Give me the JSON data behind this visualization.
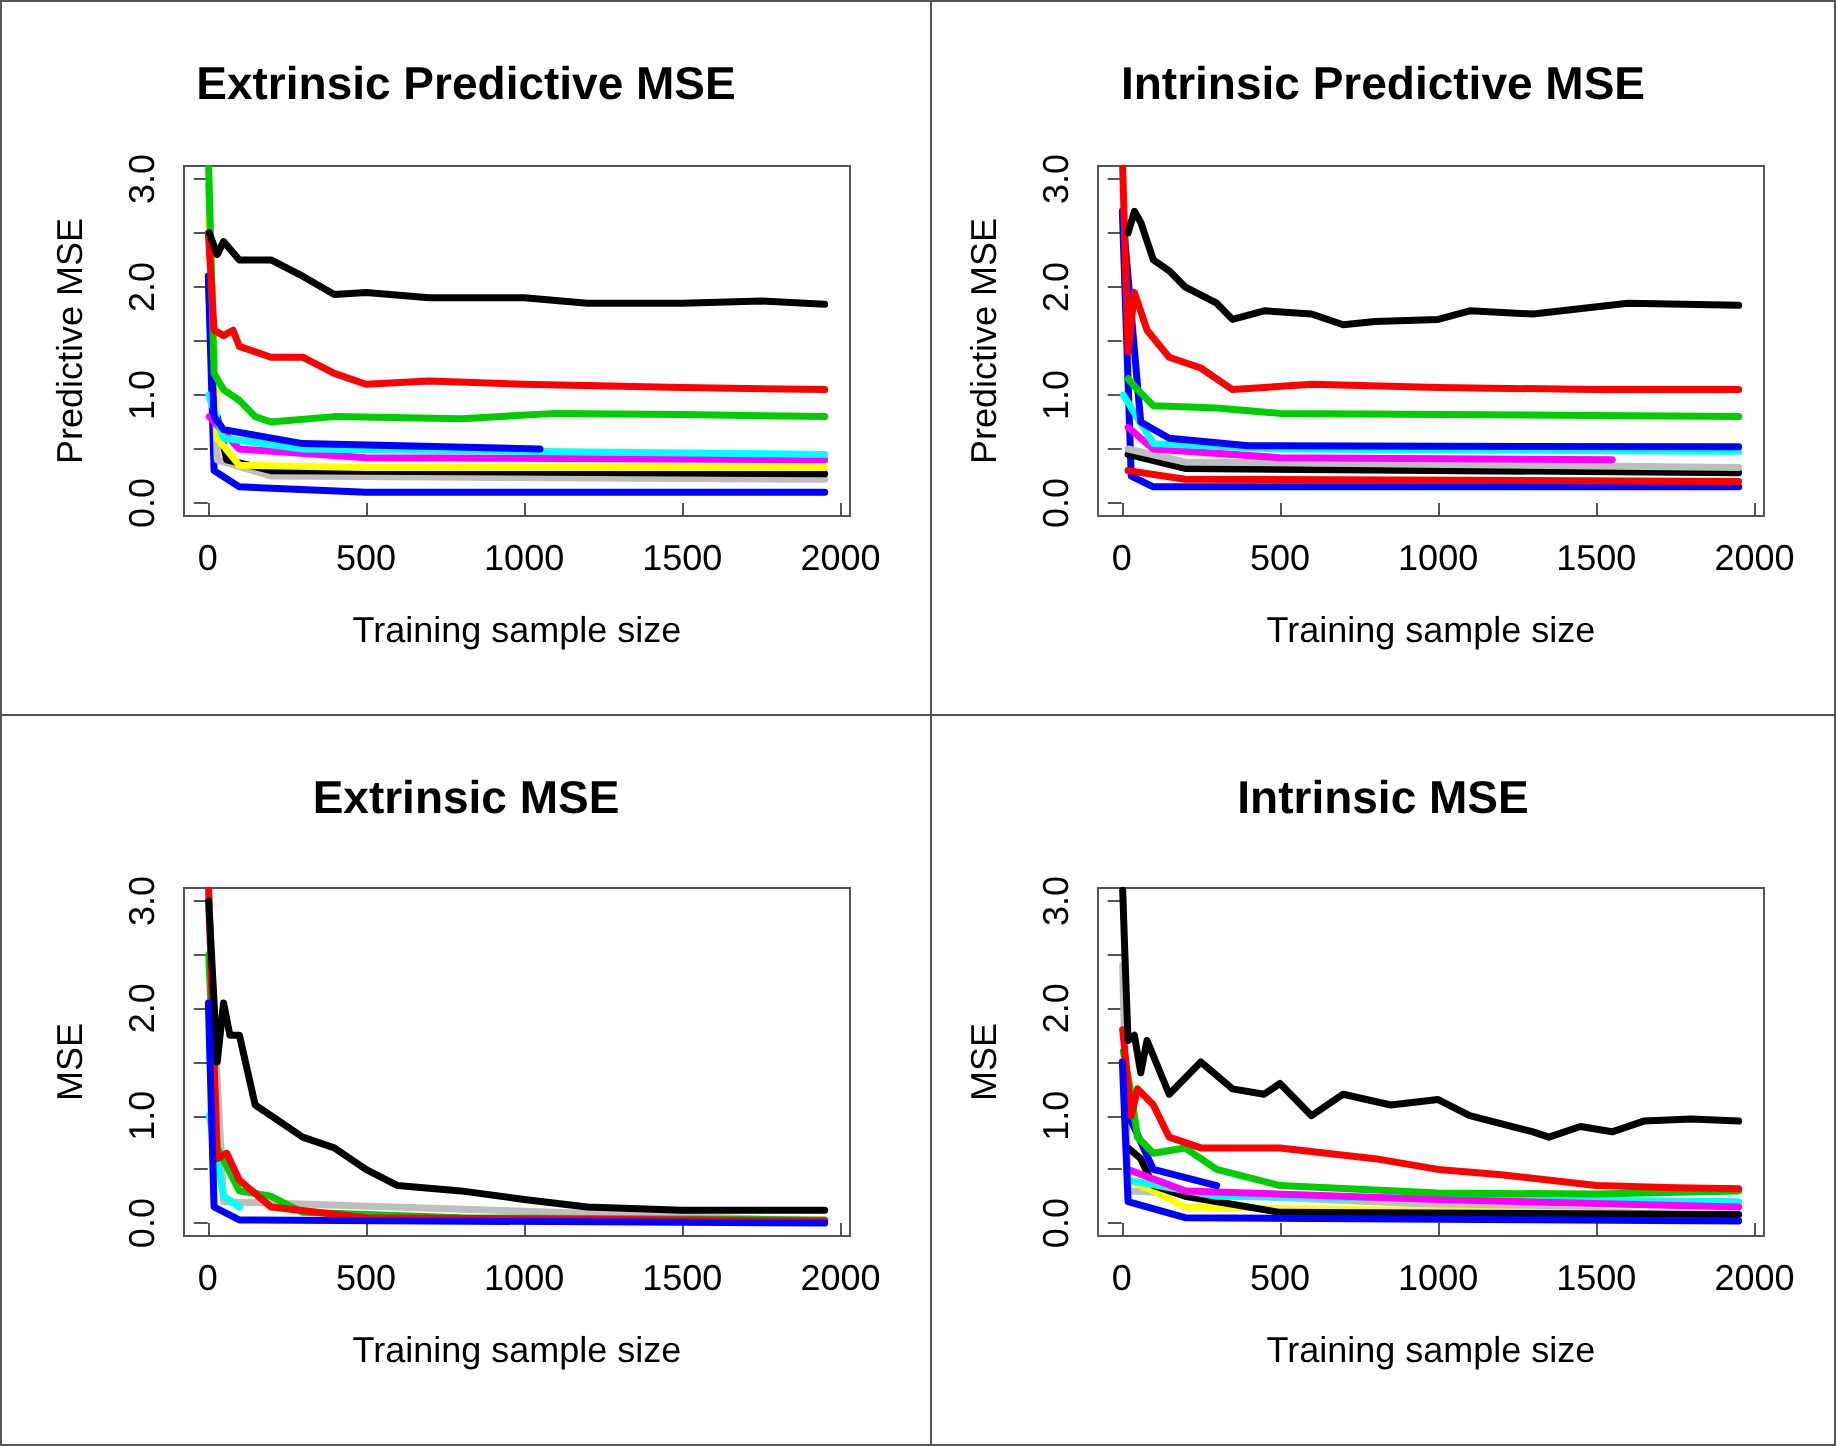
{
  "chart_data": [
    {
      "type": "line",
      "title": "Extrinsic Predictive MSE",
      "xlabel": "Training sample size",
      "ylabel": "Predictive MSE",
      "xlim": [
        -75,
        2030
      ],
      "ylim": [
        -0.12,
        3.12
      ],
      "xticks": [
        0,
        500,
        1000,
        1500,
        2000
      ],
      "yticks": [
        {
          "value": 0,
          "label": "0.0"
        },
        {
          "value": 0.5,
          "label": null
        },
        {
          "value": 1,
          "label": "1.0"
        },
        {
          "value": 1.5,
          "label": null
        },
        {
          "value": 2,
          "label": "2.0"
        },
        {
          "value": 2.5,
          "label": null
        },
        {
          "value": 3,
          "label": "3.0"
        }
      ],
      "line_style": "solid",
      "series": [
        {
          "color": "#0000ff",
          "x": [
            2,
            20,
            100,
            500,
            1950
          ],
          "values": [
            2.1,
            0.3,
            0.15,
            0.1,
            0.1
          ]
        },
        {
          "color": "#bebebe",
          "x": [
            3,
            30,
            200,
            1950
          ],
          "values": [
            2.95,
            0.4,
            0.25,
            0.22
          ]
        },
        {
          "color": "#000000",
          "x": [
            30,
            60,
            200,
            1950
          ],
          "values": [
            0.8,
            0.4,
            0.3,
            0.27
          ]
        },
        {
          "color": "#ffff00",
          "x": [
            3,
            30,
            100,
            500,
            1950
          ],
          "values": [
            2.65,
            0.6,
            0.35,
            0.33,
            0.33
          ]
        },
        {
          "color": "#ff00ff",
          "x": [
            5,
            100,
            500,
            1950
          ],
          "values": [
            0.8,
            0.5,
            0.42,
            0.4
          ]
        },
        {
          "color": "#00ffff",
          "x": [
            3,
            50,
            300,
            1950
          ],
          "values": [
            1.0,
            0.6,
            0.5,
            0.45
          ]
        },
        {
          "color": "#0000ff",
          "x": [
            2,
            20,
            50,
            300,
            1050
          ],
          "values": [
            2.1,
            0.8,
            0.68,
            0.55,
            0.5
          ]
        },
        {
          "color": "#00cd00",
          "x": [
            3,
            20,
            50,
            100,
            150,
            200,
            400,
            800,
            1100,
            1500,
            1950
          ],
          "values": [
            3.1,
            1.2,
            1.05,
            0.95,
            0.8,
            0.75,
            0.8,
            0.78,
            0.83,
            0.82,
            0.8
          ]
        },
        {
          "color": "#ff0000",
          "x": [
            2,
            20,
            50,
            80,
            100,
            200,
            300,
            400,
            500,
            700,
            1000,
            1500,
            1950
          ],
          "values": [
            2.5,
            1.6,
            1.55,
            1.6,
            1.45,
            1.35,
            1.35,
            1.2,
            1.1,
            1.13,
            1.1,
            1.07,
            1.05
          ]
        },
        {
          "color": "#000000",
          "x": [
            5,
            30,
            50,
            100,
            200,
            300,
            400,
            500,
            700,
            1000,
            1200,
            1500,
            1750,
            1950
          ],
          "values": [
            2.5,
            2.3,
            2.42,
            2.25,
            2.25,
            2.1,
            1.93,
            1.95,
            1.9,
            1.9,
            1.85,
            1.85,
            1.87,
            1.84
          ]
        }
      ]
    },
    {
      "type": "line",
      "title": "Intrinsic Predictive MSE",
      "xlabel": "Training sample size",
      "ylabel": "Predictive MSE",
      "xlim": [
        -75,
        2030
      ],
      "ylim": [
        -0.12,
        3.12
      ],
      "xticks": [
        0,
        500,
        1000,
        1500,
        2000
      ],
      "yticks": [
        {
          "value": 0,
          "label": "0.0"
        },
        {
          "value": 0.5,
          "label": null
        },
        {
          "value": 1,
          "label": "1.0"
        },
        {
          "value": 1.5,
          "label": null
        },
        {
          "value": 2,
          "label": "2.0"
        },
        {
          "value": 2.5,
          "label": null
        },
        {
          "value": 3,
          "label": "3.0"
        }
      ],
      "line_style": "solid",
      "series": [
        {
          "color": "#0000ff",
          "x": [
            2,
            30,
            100,
            1950
          ],
          "values": [
            2.7,
            0.25,
            0.15,
            0.15
          ]
        },
        {
          "color": "#ff0000",
          "x": [
            20,
            200,
            1950
          ],
          "values": [
            0.3,
            0.22,
            0.2
          ]
        },
        {
          "color": "#000000",
          "x": [
            20,
            200,
            1950
          ],
          "values": [
            0.45,
            0.32,
            0.28
          ]
        },
        {
          "color": "#bebebe",
          "x": [
            20,
            200,
            1950
          ],
          "values": [
            0.5,
            0.38,
            0.33
          ]
        },
        {
          "color": "#ff00ff",
          "x": [
            20,
            100,
            500,
            1550
          ],
          "values": [
            0.7,
            0.5,
            0.42,
            0.4
          ]
        },
        {
          "color": "#00ffff",
          "x": [
            5,
            100,
            500,
            1950
          ],
          "values": [
            1.0,
            0.55,
            0.5,
            0.48
          ]
        },
        {
          "color": "#0000ff",
          "x": [
            2,
            60,
            150,
            400,
            1950
          ],
          "values": [
            2.7,
            0.75,
            0.6,
            0.53,
            0.52
          ]
        },
        {
          "color": "#00cd00",
          "x": [
            20,
            50,
            100,
            300,
            500,
            1950
          ],
          "values": [
            1.15,
            1.05,
            0.9,
            0.88,
            0.83,
            0.8
          ]
        },
        {
          "color": "#ff0000",
          "x": [
            3,
            20,
            40,
            80,
            150,
            250,
            300,
            350,
            600,
            1000,
            1500,
            1950
          ],
          "values": [
            3.1,
            1.4,
            1.95,
            1.6,
            1.35,
            1.25,
            1.15,
            1.05,
            1.1,
            1.07,
            1.05,
            1.05
          ]
        },
        {
          "color": "#000000",
          "x": [
            20,
            40,
            60,
            100,
            150,
            200,
            300,
            350,
            450,
            600,
            700,
            800,
            1000,
            1100,
            1300,
            1600,
            1950
          ],
          "values": [
            2.5,
            2.7,
            2.6,
            2.25,
            2.15,
            2.0,
            1.85,
            1.7,
            1.78,
            1.75,
            1.65,
            1.68,
            1.7,
            1.78,
            1.75,
            1.85,
            1.83
          ]
        }
      ]
    },
    {
      "type": "line",
      "title": "Extrinsic MSE",
      "xlabel": "Training sample size",
      "ylabel": "MSE",
      "xlim": [
        -75,
        2030
      ],
      "ylim": [
        -0.12,
        3.12
      ],
      "xticks": [
        0,
        500,
        1000,
        1500,
        2000
      ],
      "yticks": [
        {
          "value": 0,
          "label": "0.0"
        },
        {
          "value": 0.5,
          "label": null
        },
        {
          "value": 1,
          "label": "1.0"
        },
        {
          "value": 1.5,
          "label": null
        },
        {
          "value": 2,
          "label": "2.0"
        },
        {
          "value": 2.5,
          "label": null
        },
        {
          "value": 3,
          "label": "3.0"
        }
      ],
      "line_style": "solid",
      "series": [
        {
          "color": "#bebebe",
          "x": [
            3,
            50,
            1950
          ],
          "values": [
            2.9,
            0.2,
            0.02
          ]
        },
        {
          "color": "#00ffff",
          "x": [
            5,
            50,
            100
          ],
          "values": [
            1.0,
            0.25,
            0.15
          ]
        },
        {
          "color": "#00cd00",
          "x": [
            3,
            30,
            100,
            200,
            300,
            800,
            1950
          ],
          "values": [
            2.5,
            0.7,
            0.3,
            0.25,
            0.1,
            0.05,
            0.03
          ]
        },
        {
          "color": "#ff0000",
          "x": [
            3,
            30,
            60,
            100,
            200,
            500,
            1950
          ],
          "values": [
            3.1,
            0.6,
            0.65,
            0.4,
            0.15,
            0.05,
            0.02
          ]
        },
        {
          "color": "#000000",
          "x": [
            3,
            30,
            50,
            70,
            100,
            150,
            200,
            300,
            400,
            500,
            600,
            800,
            1000,
            1200,
            1500,
            1950
          ],
          "values": [
            3.0,
            1.5,
            2.05,
            1.75,
            1.75,
            1.1,
            1.0,
            0.8,
            0.7,
            0.5,
            0.35,
            0.3,
            0.22,
            0.15,
            0.12,
            0.12
          ]
        },
        {
          "color": "#0000ff",
          "x": [
            2,
            20,
            100,
            1950
          ],
          "values": [
            2.05,
            0.15,
            0.03,
            0.0
          ]
        }
      ]
    },
    {
      "type": "line",
      "title": "Intrinsic MSE",
      "xlabel": "Training sample size",
      "ylabel": "MSE",
      "xlim": [
        -75,
        2030
      ],
      "ylim": [
        -0.12,
        3.12
      ],
      "xticks": [
        0,
        500,
        1000,
        1500,
        2000
      ],
      "yticks": [
        {
          "value": 0,
          "label": "0.0"
        },
        {
          "value": 0.5,
          "label": null
        },
        {
          "value": 1,
          "label": "1.0"
        },
        {
          "value": 1.5,
          "label": null
        },
        {
          "value": 2,
          "label": "2.0"
        },
        {
          "value": 2.5,
          "label": null
        },
        {
          "value": 3,
          "label": "3.0"
        }
      ],
      "line_style": "solid",
      "series": [
        {
          "color": "#bebebe",
          "x": [
            3,
            20,
            1950
          ],
          "values": [
            2.4,
            0.3,
            0.05
          ]
        },
        {
          "color": "#ffff00",
          "x": [
            20,
            100,
            200,
            1950
          ],
          "values": [
            0.4,
            0.3,
            0.15,
            0.07
          ]
        },
        {
          "color": "#000000",
          "x": [
            20,
            60,
            100,
            200,
            500,
            1950
          ],
          "values": [
            0.7,
            0.6,
            0.35,
            0.25,
            0.1,
            0.08
          ]
        },
        {
          "color": "#00ffff",
          "x": [
            20,
            300,
            1950
          ],
          "values": [
            0.4,
            0.25,
            0.2
          ]
        },
        {
          "color": "#ff00ff",
          "x": [
            20,
            200,
            1000,
            1950
          ],
          "values": [
            0.5,
            0.3,
            0.22,
            0.15
          ]
        },
        {
          "color": "#0000ff",
          "x": [
            2,
            30,
            100,
            300
          ],
          "values": [
            1.5,
            0.95,
            0.5,
            0.35
          ]
        },
        {
          "color": "#00cd00",
          "x": [
            5,
            30,
            50,
            100,
            200,
            300,
            500,
            1000,
            1500,
            1950
          ],
          "values": [
            1.6,
            1.2,
            0.8,
            0.65,
            0.7,
            0.5,
            0.35,
            0.28,
            0.27,
            0.3
          ]
        },
        {
          "color": "#ff0000",
          "x": [
            3,
            30,
            50,
            100,
            150,
            250,
            500,
            800,
            1000,
            1200,
            1500,
            1750,
            1950
          ],
          "values": [
            1.8,
            1.0,
            1.25,
            1.1,
            0.8,
            0.7,
            0.7,
            0.6,
            0.5,
            0.45,
            0.35,
            0.33,
            0.32
          ]
        },
        {
          "color": "#000000",
          "x": [
            3,
            10,
            20,
            40,
            60,
            80,
            150,
            250,
            350,
            450,
            500,
            600,
            700,
            850,
            1000,
            1100,
            1300,
            1350,
            1450,
            1550,
            1650,
            1800,
            1950
          ],
          "values": [
            3.1,
            2.5,
            1.7,
            1.75,
            1.4,
            1.7,
            1.2,
            1.5,
            1.25,
            1.2,
            1.3,
            1.0,
            1.2,
            1.1,
            1.15,
            1.0,
            0.85,
            0.8,
            0.9,
            0.85,
            0.95,
            0.97,
            0.95
          ]
        },
        {
          "color": "#0000ff",
          "x": [
            2,
            20,
            200,
            1950
          ],
          "values": [
            1.5,
            0.2,
            0.05,
            0.02
          ]
        }
      ]
    }
  ]
}
